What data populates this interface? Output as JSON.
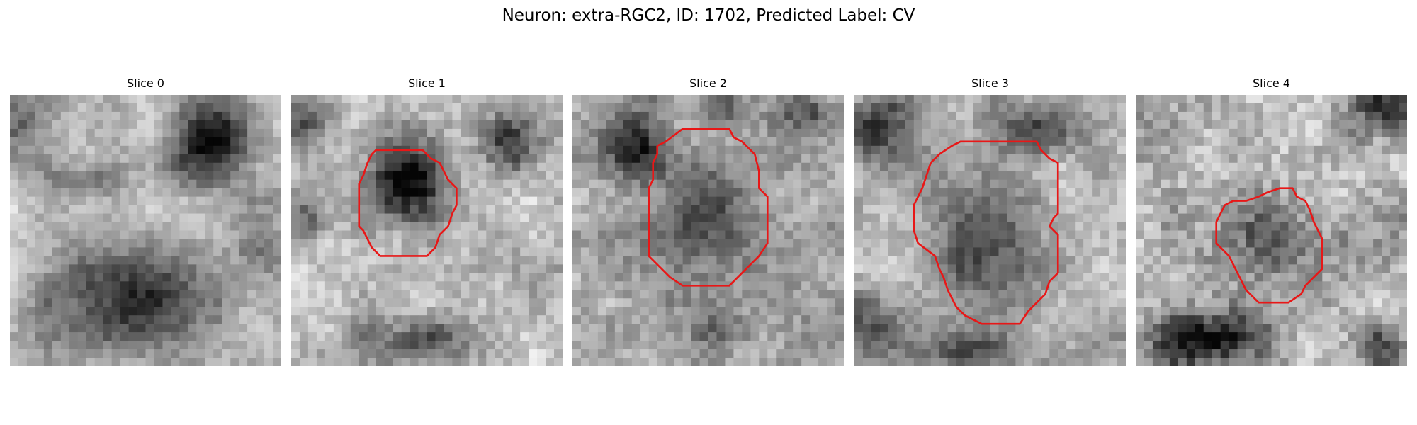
{
  "figure": {
    "title": "Neuron: extra-RGC2, ID: 1702, Predicted Label: CV",
    "contour_color": "#e81717",
    "colormap": "grayscale"
  },
  "panels": [
    {
      "title": "Slice 0",
      "has_contour": false,
      "image_description": "noisy grayscale microscopy patch; dark blob top-right, dark region along bottom, lighter band across middle"
    },
    {
      "title": "Slice 1",
      "has_contour": true,
      "image_description": "noisy grayscale microscopy patch; very dark round cell in centre-left outlined by red contour"
    },
    {
      "title": "Slice 2",
      "has_contour": true,
      "image_description": "noisy grayscale microscopy patch; medium-dark round cell in centre outlined by red contour"
    },
    {
      "title": "Slice 3",
      "has_contour": true,
      "image_description": "noisy grayscale microscopy patch; large round cell with lighter interior outlined by red contour"
    },
    {
      "title": "Slice 4",
      "has_contour": true,
      "image_description": "noisy grayscale microscopy patch; smaller faint round cell outlined by red contour, dark region at bottom"
    }
  ]
}
